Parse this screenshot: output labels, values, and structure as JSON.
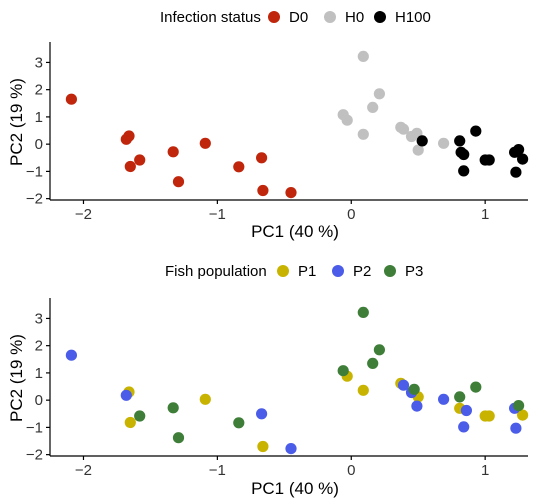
{
  "chart_data": [
    {
      "type": "scatter",
      "title": "",
      "legend": {
        "title": "Infection status",
        "placement": "top",
        "entries": [
          {
            "name": "D0",
            "color": "#c0260c"
          },
          {
            "name": "H0",
            "color": "#c0c0c0"
          },
          {
            "name": "H100",
            "color": "#000000"
          }
        ]
      },
      "xlabel": "PC1 (40 %)",
      "ylabel": "PC2 (19 %)",
      "xlim": [
        -2.25,
        1.32
      ],
      "ylim": [
        -2.05,
        3.75
      ],
      "xticks": [
        -2,
        -1,
        0,
        1
      ],
      "xtick_labels": [
        "−2",
        "−1",
        "0",
        "1"
      ],
      "yticks": [
        -2,
        -1,
        0,
        1,
        2,
        3
      ],
      "ytick_labels": [
        "−2",
        "−1",
        "0",
        "1",
        "2",
        "3"
      ],
      "grid": false,
      "series": [
        {
          "name": "D0",
          "color": "#c0260c",
          "points": [
            [
              -2.09,
              1.65
            ],
            [
              -1.68,
              0.18
            ],
            [
              -1.66,
              0.3
            ],
            [
              -1.65,
              -0.82
            ],
            [
              -1.58,
              -0.58
            ],
            [
              -1.33,
              -0.28
            ],
            [
              -1.29,
              -1.38
            ],
            [
              -1.09,
              0.03
            ],
            [
              -0.84,
              -0.83
            ],
            [
              -0.67,
              -0.5
            ],
            [
              -0.66,
              -1.7
            ],
            [
              -0.45,
              -1.78
            ]
          ]
        },
        {
          "name": "H0",
          "color": "#c0c0c0",
          "points": [
            [
              -0.06,
              1.08
            ],
            [
              -0.03,
              0.88
            ],
            [
              0.09,
              3.22
            ],
            [
              0.09,
              0.36
            ],
            [
              0.16,
              1.35
            ],
            [
              0.21,
              1.85
            ],
            [
              0.37,
              0.62
            ],
            [
              0.39,
              0.55
            ],
            [
              0.45,
              0.28
            ],
            [
              0.49,
              0.4
            ],
            [
              0.5,
              -0.22
            ],
            [
              0.69,
              0.03
            ]
          ]
        },
        {
          "name": "H100",
          "color": "#000000",
          "points": [
            [
              0.53,
              0.12
            ],
            [
              0.81,
              0.12
            ],
            [
              0.82,
              -0.3
            ],
            [
              0.84,
              -0.38
            ],
            [
              0.84,
              -0.98
            ],
            [
              0.93,
              0.48
            ],
            [
              1.0,
              -0.58
            ],
            [
              1.03,
              -0.58
            ],
            [
              1.22,
              -0.3
            ],
            [
              1.23,
              -1.03
            ],
            [
              1.25,
              -0.2
            ],
            [
              1.28,
              -0.55
            ]
          ]
        }
      ]
    },
    {
      "type": "scatter",
      "title": "",
      "legend": {
        "title": "Fish population",
        "placement": "top",
        "entries": [
          {
            "name": "P1",
            "color": "#c8b400"
          },
          {
            "name": "P2",
            "color": "#4a5ce8"
          },
          {
            "name": "P3",
            "color": "#3e7e38"
          }
        ]
      },
      "xlabel": "PC1 (40 %)",
      "ylabel": "PC2 (19 %)",
      "xlim": [
        -2.25,
        1.32
      ],
      "ylim": [
        -2.05,
        3.75
      ],
      "xticks": [
        -2,
        -1,
        0,
        1
      ],
      "xtick_labels": [
        "−2",
        "−1",
        "0",
        "1"
      ],
      "yticks": [
        -2,
        -1,
        0,
        1,
        2,
        3
      ],
      "ytick_labels": [
        "−2",
        "−1",
        "0",
        "1",
        "2",
        "3"
      ],
      "grid": false,
      "series": [
        {
          "name": "P1",
          "color": "#c8b400",
          "points": [
            [
              -1.66,
              0.3
            ],
            [
              -1.65,
              -0.82
            ],
            [
              -1.09,
              0.03
            ],
            [
              -0.66,
              -1.7
            ],
            [
              -0.03,
              0.88
            ],
            [
              0.09,
              0.36
            ],
            [
              0.37,
              0.62
            ],
            [
              0.5,
              0.12
            ],
            [
              0.81,
              -0.3
            ],
            [
              1.0,
              -0.58
            ],
            [
              1.03,
              -0.58
            ],
            [
              1.28,
              -0.55
            ]
          ]
        },
        {
          "name": "P2",
          "color": "#4a5ce8",
          "points": [
            [
              -2.09,
              1.65
            ],
            [
              -1.68,
              0.18
            ],
            [
              -0.67,
              -0.5
            ],
            [
              -0.45,
              -1.78
            ],
            [
              0.39,
              0.55
            ],
            [
              0.45,
              0.28
            ],
            [
              0.49,
              -0.22
            ],
            [
              0.69,
              0.03
            ],
            [
              0.84,
              -0.98
            ],
            [
              0.86,
              -0.38
            ],
            [
              1.22,
              -0.3
            ],
            [
              1.23,
              -1.03
            ]
          ]
        },
        {
          "name": "P3",
          "color": "#3e7e38",
          "points": [
            [
              -1.58,
              -0.58
            ],
            [
              -1.33,
              -0.28
            ],
            [
              -1.29,
              -1.38
            ],
            [
              -0.84,
              -0.83
            ],
            [
              -0.06,
              1.08
            ],
            [
              0.09,
              3.22
            ],
            [
              0.16,
              1.35
            ],
            [
              0.21,
              1.85
            ],
            [
              0.47,
              0.4
            ],
            [
              0.81,
              0.12
            ],
            [
              0.93,
              0.48
            ],
            [
              1.25,
              -0.2
            ]
          ]
        }
      ]
    }
  ]
}
